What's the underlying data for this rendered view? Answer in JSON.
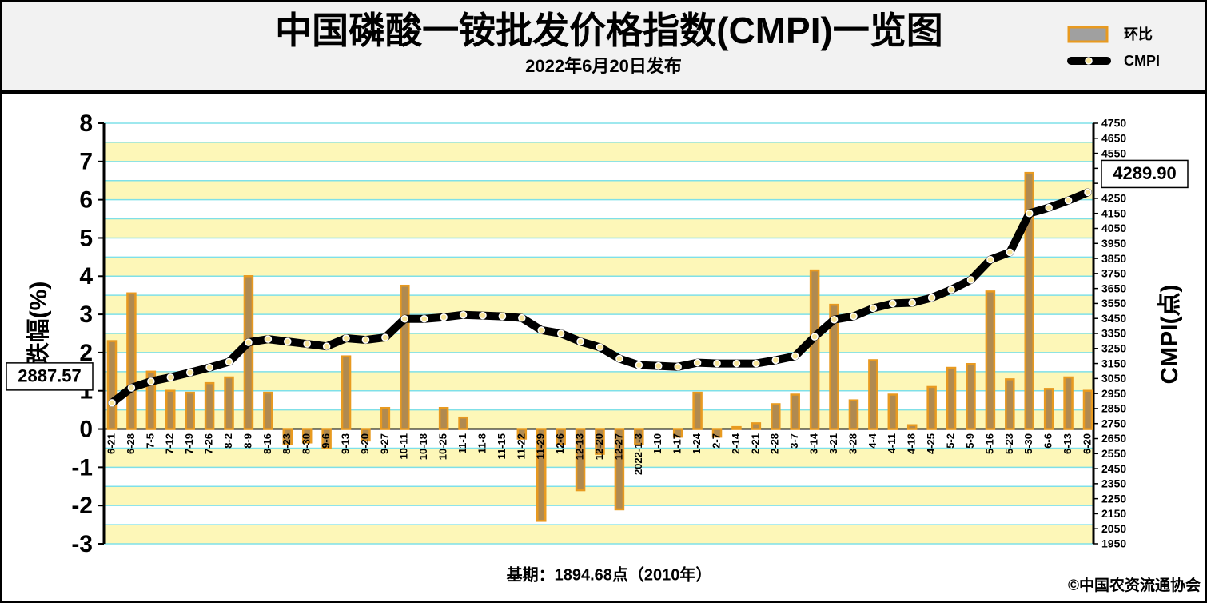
{
  "chart_data": {
    "type": "bar-line",
    "title": "中国磷酸一铵批发价格指数(CMPI)一览图",
    "subtitle": "2022年6月20日发布",
    "y_label": "涨跌幅(%)",
    "y2_label": "CMPI(点)",
    "footer": "基期：1894.68点（2010年）",
    "source": "©中国农资流通协会",
    "categories": [
      "6-21",
      "6-28",
      "7-5",
      "7-12",
      "7-19",
      "7-26",
      "8-2",
      "8-9",
      "8-16",
      "8-23",
      "8-30",
      "9-6",
      "9-13",
      "9-20",
      "9-27",
      "10-11",
      "10-18",
      "10-25",
      "11-1",
      "11-8",
      "11-15",
      "11-22",
      "11-29",
      "12-6",
      "12-13",
      "12-20",
      "12-27",
      "2022-1-3",
      "1-10",
      "1-17",
      "1-24",
      "2-7",
      "2-14",
      "2-21",
      "2-28",
      "3-7",
      "3-14",
      "3-21",
      "3-28",
      "4-4",
      "4-11",
      "4-18",
      "4-25",
      "5-2",
      "5-9",
      "5-16",
      "5-23",
      "5-30",
      "6-6",
      "6-13",
      "6-20"
    ],
    "series": [
      {
        "name": "环比",
        "type": "bar",
        "color": "#e89a20",
        "fill": "#b08a50",
        "values": [
          2.3,
          3.55,
          1.5,
          1.0,
          0.95,
          1.2,
          1.35,
          4.0,
          0.95,
          -0.4,
          -0.35,
          -0.5,
          1.9,
          -0.3,
          0.55,
          3.75,
          0,
          0.55,
          0.3,
          0,
          0,
          -0.25,
          -2.4,
          -0.4,
          -1.6,
          -0.65,
          -2.1,
          -0.4,
          0,
          -0.2,
          0.95,
          -0.2,
          0.05,
          0.15,
          0.65,
          0.9,
          4.15,
          3.25,
          0.75,
          1.8,
          0.9,
          0.1,
          1.1,
          1.6,
          1.7,
          3.6,
          1.3,
          6.7,
          1.05,
          1.35,
          1.0
        ]
      },
      {
        "name": "CMPI",
        "type": "line",
        "axis": "y2",
        "color": "#000000",
        "values": [
          2887.57,
          2988,
          3031,
          3058,
          3090,
          3123,
          3161,
          3291,
          3312,
          3296,
          3280,
          3264,
          3318,
          3307,
          3323,
          3447,
          3447,
          3458,
          3474,
          3469,
          3464,
          3453,
          3372,
          3350,
          3296,
          3258,
          3182,
          3139,
          3134,
          3128,
          3155,
          3150,
          3150,
          3150,
          3172,
          3199,
          3328,
          3442,
          3464,
          3518,
          3550,
          3555,
          3588,
          3642,
          3707,
          3842,
          3891,
          4150,
          4188,
          4236,
          4289.9
        ],
        "value_labels": [
          "2887.57",
          null,
          null,
          null,
          null,
          null,
          null,
          null,
          null,
          null,
          null,
          null,
          null,
          null,
          null,
          null,
          null,
          null,
          null,
          null,
          null,
          null,
          null,
          null,
          null,
          null,
          null,
          null,
          null,
          null,
          null,
          null,
          null,
          null,
          null,
          null,
          null,
          null,
          null,
          null,
          null,
          null,
          null,
          null,
          null,
          null,
          null,
          null,
          null,
          null,
          "4289.90"
        ]
      }
    ],
    "ylim": [
      -3,
      8
    ],
    "yticks": [
      -3,
      -2,
      -1,
      0,
      1,
      2,
      3,
      4,
      5,
      6,
      7,
      8
    ],
    "y2lim": [
      1950,
      4750
    ],
    "y2ticks": [
      1950,
      2050,
      2150,
      2250,
      2350,
      2450,
      2550,
      2650,
      2750,
      2850,
      2950,
      3050,
      3150,
      3250,
      3350,
      3450,
      3550,
      3650,
      3750,
      3850,
      3950,
      4050,
      4150,
      4250,
      4350,
      4450,
      4550,
      4650,
      4750
    ],
    "grid": true
  }
}
